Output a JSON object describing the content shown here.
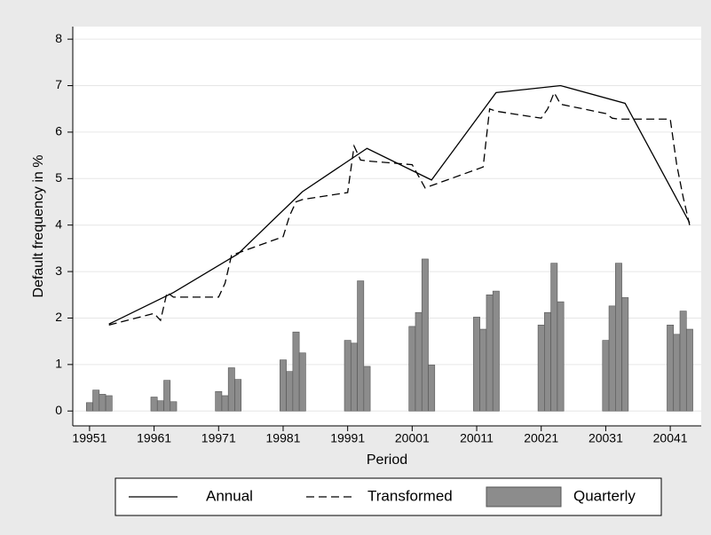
{
  "chart_data": {
    "type": "bar",
    "xlabel": "Period",
    "ylabel": "Default frequency in %",
    "xlim": [
      19948.4,
      20045.8
    ],
    "xticks": [
      19951,
      19961,
      19971,
      19981,
      19991,
      20001,
      20011,
      20021,
      20031,
      20041
    ],
    "ylim": [
      -0.32,
      8.27
    ],
    "yticks": [
      0,
      1,
      2,
      3,
      4,
      5,
      6,
      7,
      8
    ],
    "grid": true,
    "legend": "bottom",
    "series": [
      {
        "name": "Annual",
        "type": "line",
        "line_style": "solid",
        "color": "#000000",
        "x": [
          19954,
          19964,
          19974,
          19984,
          19994,
          20004,
          20014,
          20024,
          20034,
          20044
        ],
        "values": [
          1.87,
          2.55,
          3.38,
          4.72,
          5.65,
          4.97,
          6.85,
          7.0,
          6.62,
          4.05
        ]
      },
      {
        "name": "Transformed",
        "type": "line",
        "line_style": "dashed",
        "color": "#000000",
        "x": [
          19954,
          19961,
          19962,
          19963,
          19964,
          19971,
          19972,
          19973,
          19974,
          19981,
          19982,
          19983,
          19984,
          19991,
          19992,
          19993,
          19994,
          20001,
          20002,
          20003,
          20004,
          20011,
          20012,
          20013,
          20014,
          20021,
          20022,
          20023,
          20024,
          20031,
          20032,
          20033,
          20034,
          20041,
          20042,
          20043,
          20044
        ],
        "values": [
          1.85,
          2.1,
          1.95,
          2.55,
          2.45,
          2.45,
          2.75,
          3.35,
          3.4,
          3.75,
          4.2,
          4.5,
          4.55,
          4.7,
          5.7,
          5.4,
          5.38,
          5.3,
          5.05,
          4.8,
          4.85,
          5.2,
          5.25,
          6.5,
          6.45,
          6.3,
          6.5,
          6.85,
          6.6,
          6.4,
          6.3,
          6.28,
          6.28,
          6.28,
          5.3,
          4.6,
          4.0
        ]
      },
      {
        "name": "Quarterly",
        "type": "bar",
        "color": "#8c8c8c",
        "x": [
          19951,
          19952,
          19953,
          19954,
          19961,
          19962,
          19963,
          19964,
          19971,
          19972,
          19973,
          19974,
          19981,
          19982,
          19983,
          19984,
          19991,
          19992,
          19993,
          19994,
          20001,
          20002,
          20003,
          20004,
          20011,
          20012,
          20013,
          20014,
          20021,
          20022,
          20023,
          20024,
          20031,
          20032,
          20033,
          20034,
          20041,
          20042,
          20043,
          20044
        ],
        "values": [
          0.18,
          0.45,
          0.36,
          0.33,
          0.3,
          0.22,
          0.66,
          0.2,
          0.42,
          0.33,
          0.93,
          0.68,
          1.1,
          0.85,
          1.7,
          1.25,
          1.52,
          1.46,
          2.8,
          0.96,
          1.82,
          2.12,
          3.27,
          0.99,
          2.02,
          1.76,
          2.5,
          2.58,
          1.85,
          2.12,
          3.18,
          2.35,
          1.52,
          2.26,
          3.18,
          2.44,
          1.85,
          1.65,
          2.15,
          1.76
        ]
      }
    ]
  }
}
